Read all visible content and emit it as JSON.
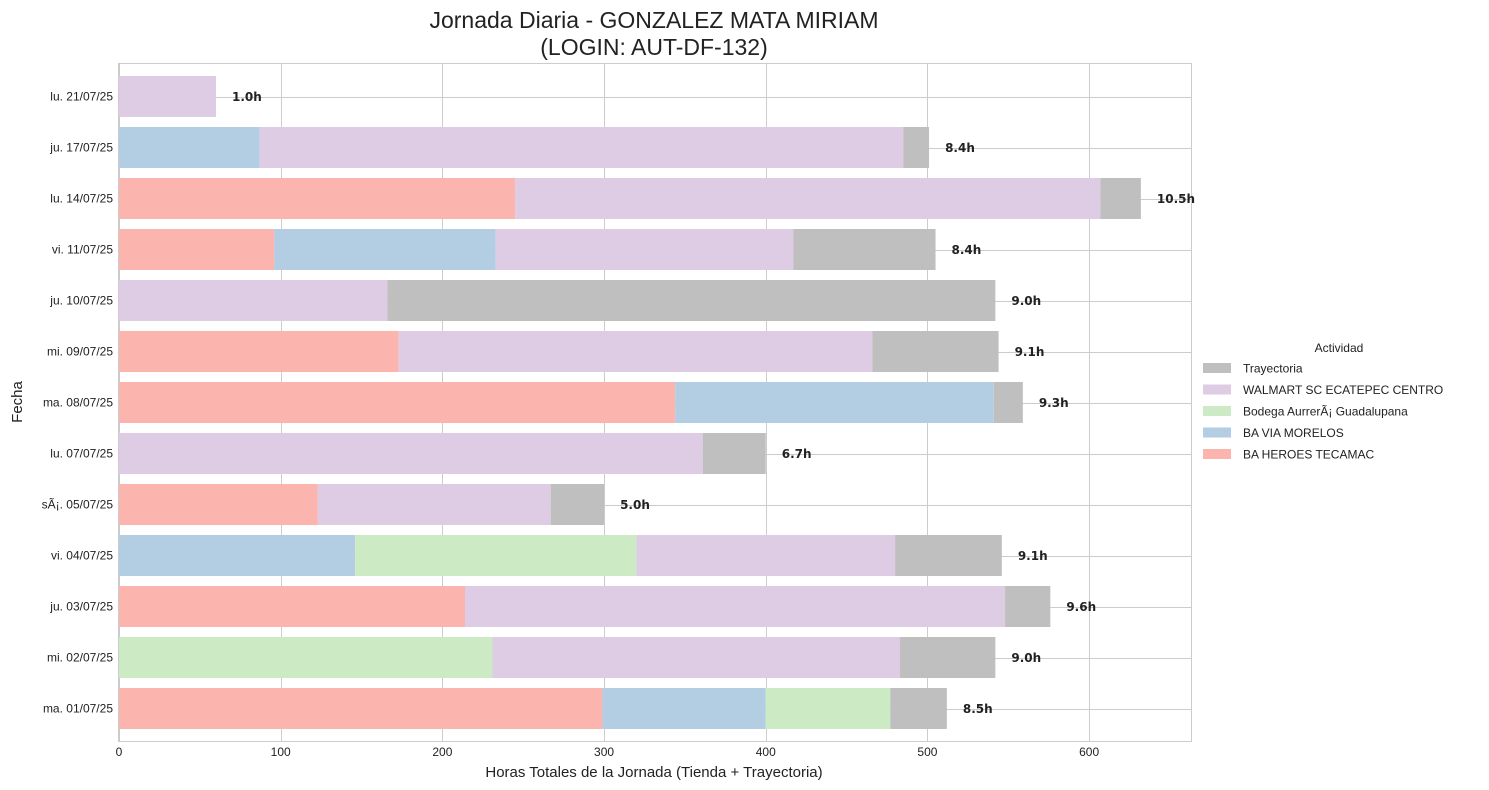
{
  "chart_data": {
    "type": "bar",
    "orientation": "horizontal",
    "stacked": true,
    "title_line1": "Jornada Diaria - GONZALEZ MATA MIRIAM",
    "title_line2": "(LOGIN: AUT-DF-132)",
    "xlabel": "Horas Totales de la Jornada (Tienda + Trayectoria)",
    "ylabel": "Fecha",
    "xlim": [
      0,
      663
    ],
    "xticks": [
      0,
      100,
      200,
      300,
      400,
      500,
      600
    ],
    "grid": true,
    "legend_title": "Actividad",
    "legend_placement": "right",
    "categories": [
      "ma. 01/07/25",
      "mi. 02/07/25",
      "ju. 03/07/25",
      "vi. 04/07/25",
      "sÃ¡. 05/07/25",
      "lu. 07/07/25",
      "ma. 08/07/25",
      "mi. 09/07/25",
      "ju. 10/07/25",
      "vi. 11/07/25",
      "lu. 14/07/25",
      "ju. 17/07/25",
      "lu. 21/07/25"
    ],
    "series": [
      {
        "name": "BA HEROES TECAMAC",
        "color": "#fbb4ae",
        "values": [
          299,
          0,
          214,
          0,
          123,
          0,
          344,
          173,
          0,
          96,
          245,
          0,
          0
        ]
      },
      {
        "name": "BA VIA MORELOS",
        "color": "#b3cde3",
        "values": [
          101,
          0,
          0,
          146,
          0,
          0,
          197,
          0,
          0,
          137,
          0,
          87,
          0
        ]
      },
      {
        "name": "Bodega AurrerÃ¡ Guadalupana",
        "color": "#ccebc5",
        "values": [
          77,
          231,
          0,
          174,
          0,
          0,
          0,
          0,
          0,
          0,
          0,
          0,
          0
        ]
      },
      {
        "name": "WALMART SC ECATEPEC CENTRO",
        "color": "#decbe4",
        "values": [
          0,
          252,
          334,
          160,
          144,
          361,
          0,
          293,
          166,
          184,
          362,
          398,
          60
        ]
      },
      {
        "name": "Trayectoria",
        "color": "#bfbfbf",
        "values": [
          35,
          59,
          28,
          66,
          33,
          39,
          18,
          78,
          376,
          88,
          25,
          16,
          0
        ]
      }
    ],
    "legend_order": [
      "Trayectoria",
      "WALMART SC ECATEPEC CENTRO",
      "Bodega AurrerÃ¡ Guadalupana",
      "BA VIA MORELOS",
      "BA HEROES TECAMAC"
    ],
    "data_labels": [
      "8.5h",
      "9.0h",
      "9.6h",
      "9.1h",
      "5.0h",
      "6.7h",
      "9.3h",
      "9.1h",
      "9.0h",
      "8.4h",
      "10.5h",
      "8.4h",
      "1.0h"
    ]
  }
}
